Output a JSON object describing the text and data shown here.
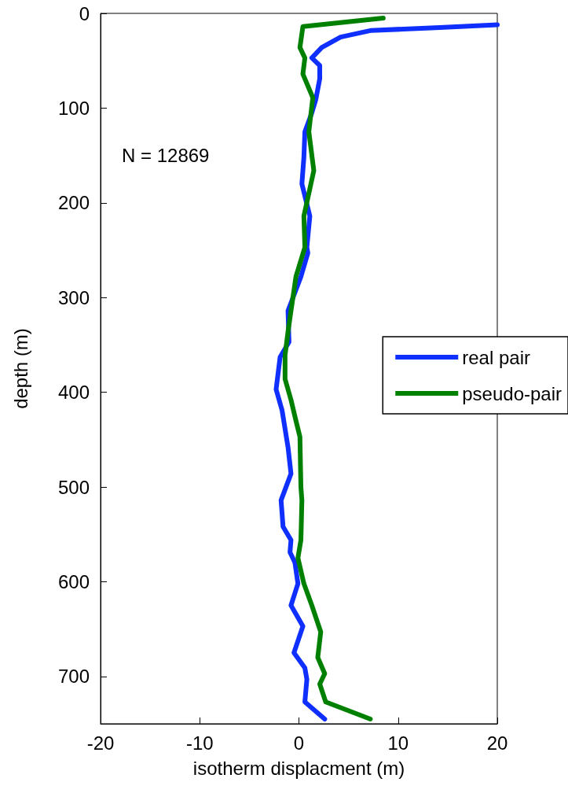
{
  "chart_data": {
    "type": "line",
    "xlabel": "isotherm displacment (m)",
    "ylabel": "depth (m)",
    "xlim": [
      -20,
      20
    ],
    "xticks": [
      -20,
      -10,
      0,
      10,
      20
    ],
    "ylim": [
      750,
      0
    ],
    "yticks": [
      0,
      100,
      200,
      300,
      400,
      500,
      600,
      700
    ],
    "grid": false,
    "legend": "right",
    "marker": "none",
    "line_style": "solid",
    "annotations": [
      "N = 12869"
    ],
    "series": [
      {
        "name": "real pair",
        "color": "#0f2fff",
        "x": [
          20,
          14.2,
          7.3,
          4.2,
          2.3,
          1.3,
          2.1,
          2.1,
          1.7,
          1.3,
          0.6,
          0.5,
          0.3,
          1.1,
          0.8,
          0.9,
          0.2,
          -1.1,
          -1.0,
          -1.9,
          -2.3,
          -1.7,
          -1.1,
          -0.8,
          -1.8,
          -1.6,
          -0.8,
          -0.9,
          -0.4,
          -0.1,
          -0.8,
          0.4,
          -0.5,
          0.6,
          0.8,
          0.6,
          2.6
        ],
        "values": [
          12,
          15,
          18,
          25,
          36,
          47,
          55,
          69,
          91,
          105,
          125,
          152,
          180,
          214,
          247,
          253,
          278,
          314,
          347,
          363,
          397,
          419,
          458,
          486,
          514,
          542,
          556,
          569,
          580,
          602,
          625,
          647,
          675,
          691,
          703,
          727,
          745
        ]
      },
      {
        "name": "pseudo-pair",
        "color": "#008000",
        "x": [
          8.5,
          0.4,
          0.1,
          0.6,
          0.4,
          1.4,
          1.0,
          1.5,
          0.5,
          0.6,
          -0.3,
          -0.8,
          -1.1,
          -1.4,
          -1.4,
          -0.8,
          -0.3,
          0.1,
          0.2,
          0.3,
          0.2,
          -0.1,
          0.5,
          1.3,
          2.2,
          1.9,
          2.6,
          2.1,
          2.7,
          7.2
        ],
        "values": [
          5,
          14,
          36,
          47,
          64,
          89,
          125,
          166,
          214,
          247,
          278,
          314,
          336,
          361,
          386,
          408,
          430,
          447,
          500,
          514,
          556,
          575,
          602,
          625,
          653,
          680,
          697,
          708,
          727,
          745
        ]
      }
    ]
  }
}
